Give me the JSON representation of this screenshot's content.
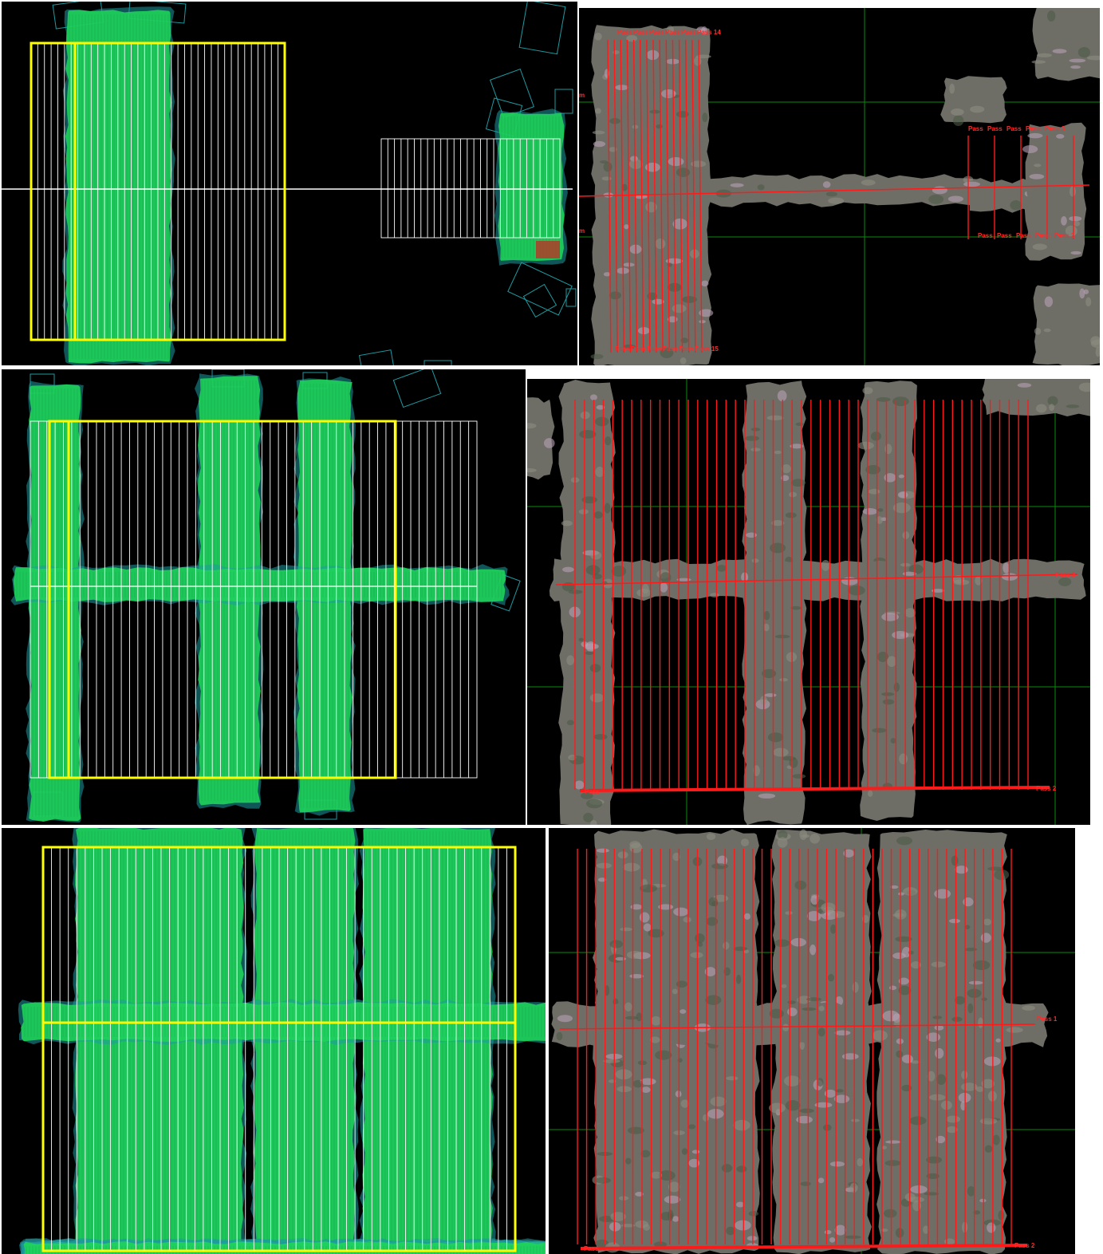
{
  "colors": {
    "background": "#000000",
    "coverage_fill": "#1fd35a",
    "footprint_outline": "#1e9aa0",
    "plan_area_boundary": "#ffff00",
    "planned_pass_line": "#ffffff",
    "flown_pass_line": "#ff1a1a",
    "grid_line": "#0a8a0a",
    "orthomosaic": "#6e6e66",
    "bad_images": "#d02020"
  },
  "panels": [
    {
      "id": "mission-1",
      "coverage_view": {
        "icon": "footprint-coverage-icon"
      },
      "mosaic_view": {
        "pass_labels_top": [
          "Pass",
          "Pass",
          "Pass",
          "Pass",
          "Pass",
          "Pass 14"
        ],
        "pass_labels_bottom": [
          "Pass",
          "Pass",
          "Pass",
          "Pass",
          "Pass",
          "Pass 15"
        ],
        "pass_labels_east_top": [
          "Pass",
          "Pass",
          "Pass",
          "Pass",
          "Pass 3"
        ],
        "pass_labels_east_bottom": [
          "Pass",
          "Pass",
          "Pass",
          "Pass",
          "Pass 2"
        ],
        "grid_marks": [
          "m",
          "m"
        ]
      }
    },
    {
      "id": "mission-2",
      "coverage_view": {
        "icon": "footprint-coverage-icon"
      },
      "mosaic_view": {
        "pass_label_center": "Pass 1",
        "pass_label_bottom": "Pass 2",
        "bottom_row_prefix": "Pass"
      }
    },
    {
      "id": "mission-3",
      "coverage_view": {
        "icon": "footprint-coverage-icon"
      },
      "mosaic_view": {
        "pass_label_center": "Pass 1",
        "pass_label_bottom": "Pass 2",
        "bottom_row_prefix": "Pass"
      }
    }
  ]
}
